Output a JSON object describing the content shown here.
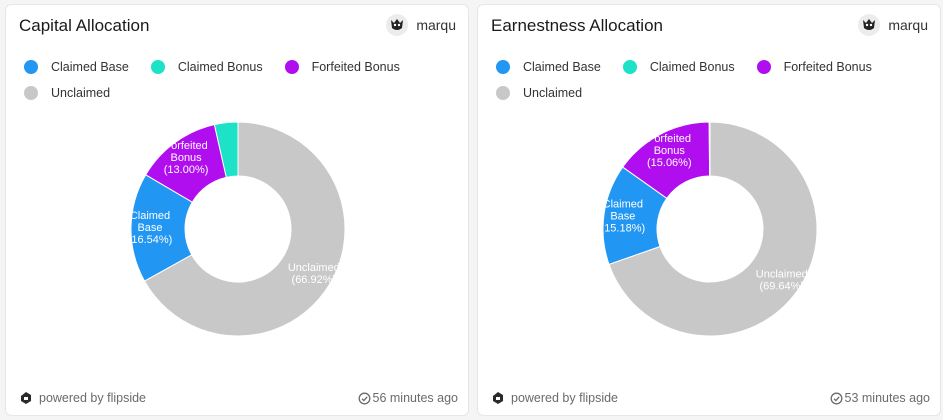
{
  "colors": {
    "claimed_base": "#2196f3",
    "claimed_bonus": "#1de2c7",
    "forfeited_bonus": "#b10ef0",
    "unclaimed": "#c8c8c8"
  },
  "cards": [
    {
      "title": "Capital Allocation",
      "user_name": "marqu",
      "legend": [
        "Claimed Base",
        "Claimed Bonus",
        "Forfeited Bonus",
        "Unclaimed"
      ],
      "footer_brand": "powered by flipside",
      "footer_time": "56 minutes ago"
    },
    {
      "title": "Earnestness Allocation",
      "user_name": "marqu",
      "legend": [
        "Claimed Base",
        "Claimed Bonus",
        "Forfeited Bonus",
        "Unclaimed"
      ],
      "footer_brand": "powered by flipside",
      "footer_time": "53 minutes ago"
    }
  ],
  "chart_data": [
    {
      "type": "pie",
      "title": "Capital Allocation",
      "donut": true,
      "legend_position": "top-left",
      "slices": [
        {
          "label": "Unclaimed",
          "value": 66.92,
          "display": "Unclaimed (66.92%)",
          "color_key": "unclaimed"
        },
        {
          "label": "Claimed Base",
          "value": 16.54,
          "display": "Claimed Base (16.54%)",
          "color_key": "claimed_base"
        },
        {
          "label": "Forfeited Bonus",
          "value": 13.0,
          "display": "Forfeited Bonus (13.00%)",
          "color_key": "forfeited_bonus"
        },
        {
          "label": "Claimed Bonus",
          "value": 3.54,
          "display": "",
          "color_key": "claimed_bonus"
        }
      ]
    },
    {
      "type": "pie",
      "title": "Earnestness Allocation",
      "donut": true,
      "legend_position": "top-left",
      "slices": [
        {
          "label": "Unclaimed",
          "value": 69.64,
          "display": "Unclaimed (69.64%)",
          "color_key": "unclaimed"
        },
        {
          "label": "Claimed Base",
          "value": 15.18,
          "display": "Claimed Base (15.18%)",
          "color_key": "claimed_base"
        },
        {
          "label": "Forfeited Bonus",
          "value": 15.06,
          "display": "Forfeited Bonus (15.06%)",
          "color_key": "forfeited_bonus"
        },
        {
          "label": "Claimed Bonus",
          "value": 0.12,
          "display": "",
          "color_key": "claimed_bonus"
        }
      ]
    }
  ]
}
